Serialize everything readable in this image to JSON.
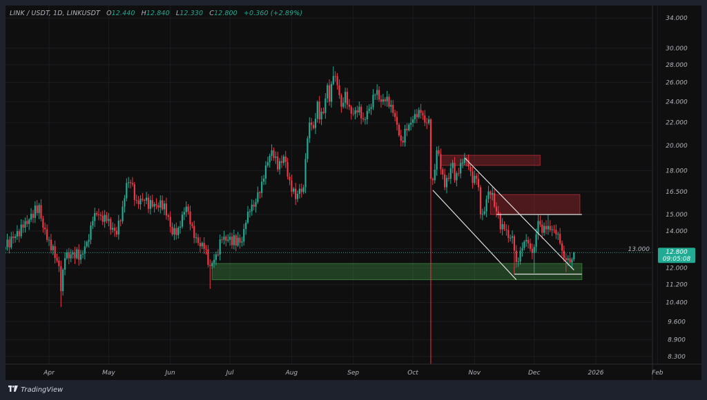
{
  "header": {
    "symbol": "LINK / USDT, 1D, LINKUSDT",
    "o_label": "O",
    "o_value": "12.440",
    "h_label": "H",
    "h_value": "12.840",
    "l_label": "L",
    "l_value": "12.330",
    "c_label": "C",
    "c_value": "12.800",
    "change": "+0.360 (+2.89%)"
  },
  "price_badge": {
    "price": "12.800",
    "countdown": "09:05:08"
  },
  "footer": {
    "brand": "TradingView",
    "logo_text": "TV"
  },
  "colors": {
    "up": "#22ab94",
    "down": "#f23645",
    "background": "#0f0f0f",
    "frame": "#1e222d",
    "supply_zone": "#f23645",
    "demand_zone": "#4caf50",
    "drawing_line": "#e0e0e0"
  },
  "chart_data": {
    "type": "candlestick",
    "scale": "log",
    "grid": true,
    "ylim": [
      8.03,
      34.6
    ],
    "y_ticks": [
      "34.000",
      "30.000",
      "28.000",
      "26.000",
      "24.000",
      "22.000",
      "20.000",
      "18.000",
      "16.500",
      "15.000",
      "14.000",
      "13.000",
      "12.000",
      "11.200",
      "10.400",
      "9.600",
      "8.900",
      "8.300"
    ],
    "x_ticks": [
      [
        "2025-04-01",
        "Apr"
      ],
      [
        "2025-05-01",
        "May"
      ],
      [
        "2025-06-01",
        "Jun"
      ],
      [
        "2025-07-01",
        "Jul"
      ],
      [
        "2025-08-01",
        "Aug"
      ],
      [
        "2025-09-01",
        "Sep"
      ],
      [
        "2025-10-01",
        "Oct"
      ],
      [
        "2025-11-01",
        "Nov"
      ],
      [
        "2025-12-01",
        "Dec"
      ],
      [
        "2026-01-01",
        "2026"
      ],
      [
        "2026-02-01",
        "Feb"
      ]
    ],
    "close_path": [
      [
        "2025-03-10",
        13.1
      ],
      [
        "2025-03-14",
        13.6
      ],
      [
        "2025-03-19",
        14.2
      ],
      [
        "2025-03-27",
        15.6
      ],
      [
        "2025-03-29",
        14.2
      ],
      [
        "2025-04-01",
        13.5
      ],
      [
        "2025-04-06",
        12.1
      ],
      [
        "2025-04-07",
        10.9
      ],
      [
        "2025-04-09",
        12.5
      ],
      [
        "2025-04-12",
        12.7
      ],
      [
        "2025-04-17",
        12.7
      ],
      [
        "2025-04-21",
        13.5
      ],
      [
        "2025-04-23",
        14.6
      ],
      [
        "2025-04-25",
        15.0
      ],
      [
        "2025-04-30",
        14.6
      ],
      [
        "2025-05-05",
        13.8
      ],
      [
        "2025-05-08",
        15.5
      ],
      [
        "2025-05-10",
        17.1
      ],
      [
        "2025-05-12",
        17.1
      ],
      [
        "2025-05-15",
        15.9
      ],
      [
        "2025-05-19",
        15.9
      ],
      [
        "2025-05-23",
        15.5
      ],
      [
        "2025-05-29",
        15.7
      ],
      [
        "2025-06-02",
        13.8
      ],
      [
        "2025-06-05",
        14.2
      ],
      [
        "2025-06-09",
        15.5
      ],
      [
        "2025-06-11",
        14.4
      ],
      [
        "2025-06-13",
        13.6
      ],
      [
        "2025-06-18",
        13.0
      ],
      [
        "2025-06-21",
        12.1
      ],
      [
        "2025-06-24",
        12.7
      ],
      [
        "2025-06-27",
        13.5
      ],
      [
        "2025-06-30",
        13.5
      ],
      [
        "2025-07-07",
        13.4
      ],
      [
        "2025-07-09",
        14.5
      ],
      [
        "2025-07-11",
        15.2
      ],
      [
        "2025-07-14",
        15.8
      ],
      [
        "2025-07-17",
        17.2
      ],
      [
        "2025-07-19",
        18.4
      ],
      [
        "2025-07-22",
        19.6
      ],
      [
        "2025-07-24",
        19.1
      ],
      [
        "2025-07-25",
        18.1
      ],
      [
        "2025-07-28",
        19.1
      ],
      [
        "2025-07-31",
        17.3
      ],
      [
        "2025-08-03",
        16.0
      ],
      [
        "2025-08-05",
        16.7
      ],
      [
        "2025-08-07",
        16.8
      ],
      [
        "2025-08-08",
        18.9
      ],
      [
        "2025-08-09",
        20.6
      ],
      [
        "2025-08-10",
        22.0
      ],
      [
        "2025-08-12",
        21.5
      ],
      [
        "2025-08-14",
        24.0
      ],
      [
        "2025-08-15",
        22.3
      ],
      [
        "2025-08-17",
        22.9
      ],
      [
        "2025-08-19",
        25.7
      ],
      [
        "2025-08-20",
        24.0
      ],
      [
        "2025-08-22",
        26.7
      ],
      [
        "2025-08-24",
        25.7
      ],
      [
        "2025-08-26",
        23.5
      ],
      [
        "2025-08-28",
        25.0
      ],
      [
        "2025-08-30",
        23.5
      ],
      [
        "2025-09-01",
        22.8
      ],
      [
        "2025-09-04",
        23.5
      ],
      [
        "2025-09-06",
        22.3
      ],
      [
        "2025-09-09",
        23.3
      ],
      [
        "2025-09-12",
        24.7
      ],
      [
        "2025-09-13",
        25.2
      ],
      [
        "2025-09-15",
        24.0
      ],
      [
        "2025-09-18",
        24.5
      ],
      [
        "2025-09-19",
        23.5
      ],
      [
        "2025-09-21",
        22.9
      ],
      [
        "2025-09-23",
        21.8
      ],
      [
        "2025-09-25",
        20.4
      ],
      [
        "2025-09-28",
        21.3
      ],
      [
        "2025-10-01",
        22.3
      ],
      [
        "2025-10-03",
        22.5
      ],
      [
        "2025-10-05",
        22.9
      ],
      [
        "2025-10-07",
        22.0
      ],
      [
        "2025-10-09",
        22.3
      ],
      [
        "2025-10-10",
        17.4
      ],
      [
        "2025-10-11",
        17.3
      ],
      [
        "2025-10-13",
        19.6
      ],
      [
        "2025-10-14",
        19.3
      ],
      [
        "2025-10-15",
        18.1
      ],
      [
        "2025-10-17",
        16.8
      ],
      [
        "2025-10-19",
        17.4
      ],
      [
        "2025-10-21",
        18.6
      ],
      [
        "2025-10-22",
        17.3
      ],
      [
        "2025-10-24",
        17.8
      ],
      [
        "2025-10-26",
        18.6
      ],
      [
        "2025-10-28",
        18.8
      ],
      [
        "2025-10-29",
        18.3
      ],
      [
        "2025-10-31",
        17.1
      ],
      [
        "2025-11-02",
        17.4
      ],
      [
        "2025-11-03",
        16.8
      ],
      [
        "2025-11-04",
        15.0
      ],
      [
        "2025-11-06",
        15.2
      ],
      [
        "2025-11-07",
        16.0
      ],
      [
        "2025-11-09",
        16.3
      ],
      [
        "2025-11-10",
        16.4
      ],
      [
        "2025-11-11",
        15.5
      ],
      [
        "2025-11-13",
        15.0
      ],
      [
        "2025-11-14",
        14.1
      ],
      [
        "2025-11-16",
        14.1
      ],
      [
        "2025-11-18",
        13.6
      ],
      [
        "2025-11-20",
        13.7
      ],
      [
        "2025-11-21",
        12.9
      ],
      [
        "2025-11-22",
        12.3
      ],
      [
        "2025-11-24",
        12.9
      ],
      [
        "2025-11-26",
        13.4
      ],
      [
        "2025-11-28",
        13.3
      ],
      [
        "2025-11-29",
        13.0
      ],
      [
        "2025-12-01",
        13.1
      ],
      [
        "2025-12-02",
        13.8
      ],
      [
        "2025-12-03",
        14.6
      ],
      [
        "2025-12-05",
        13.9
      ],
      [
        "2025-12-07",
        14.1
      ],
      [
        "2025-12-08",
        14.3
      ],
      [
        "2025-12-10",
        14.1
      ],
      [
        "2025-12-12",
        13.8
      ],
      [
        "2025-12-14",
        13.3
      ],
      [
        "2025-12-15",
        12.9
      ],
      [
        "2025-12-17",
        12.4
      ],
      [
        "2025-12-18",
        12.5
      ],
      [
        "2025-12-20",
        12.44
      ],
      [
        "2025-12-21",
        12.8
      ]
    ],
    "extreme_overrides": [
      {
        "date": "2025-04-07",
        "low": 10.2
      },
      {
        "date": "2025-06-21",
        "low": 11.0
      },
      {
        "date": "2025-08-22",
        "high": 27.8
      },
      {
        "date": "2025-10-10",
        "low": 6.0,
        "high": 22.4
      },
      {
        "date": "2025-11-21",
        "low": 11.7
      },
      {
        "date": "2025-12-01",
        "low": 11.75
      },
      {
        "date": "2025-12-03",
        "high": 15.0
      },
      {
        "date": "2025-12-08",
        "high": 15.0
      },
      {
        "date": "2025-12-17",
        "low": 11.8
      }
    ],
    "last_candle": {
      "date": "2025-12-21",
      "open": 12.44,
      "high": 12.84,
      "low": 12.33,
      "close": 12.8
    },
    "current_price": 12.8,
    "drawings": {
      "zones": [
        {
          "name": "supply-zone-upper",
          "kind": "supply",
          "from": "2025-10-15",
          "to": "2025-12-04",
          "top": 19.2,
          "bottom": 18.4
        },
        {
          "name": "supply-zone-lower",
          "kind": "supply",
          "from": "2025-11-09",
          "to": "2025-12-24",
          "top": 16.3,
          "bottom": 15.0
        },
        {
          "name": "demand-zone",
          "kind": "demand",
          "from": "2025-06-22",
          "to": "2025-12-25",
          "top": 12.23,
          "bottom": 11.43
        }
      ],
      "lines": [
        {
          "name": "resistance-line",
          "from": [
            "2025-11-12",
            15.0
          ],
          "to": [
            "2025-12-25",
            15.0
          ]
        },
        {
          "name": "support-line",
          "from": [
            "2025-11-21",
            11.7
          ],
          "to": [
            "2025-12-25",
            11.7
          ]
        },
        {
          "name": "channel-upper-line",
          "from": [
            "2025-10-27",
            19.0
          ],
          "to": [
            "2025-12-21",
            11.9
          ]
        },
        {
          "name": "channel-lower-line",
          "from": [
            "2025-10-11",
            16.6
          ],
          "to": [
            "2025-11-22",
            11.43
          ]
        }
      ]
    }
  }
}
